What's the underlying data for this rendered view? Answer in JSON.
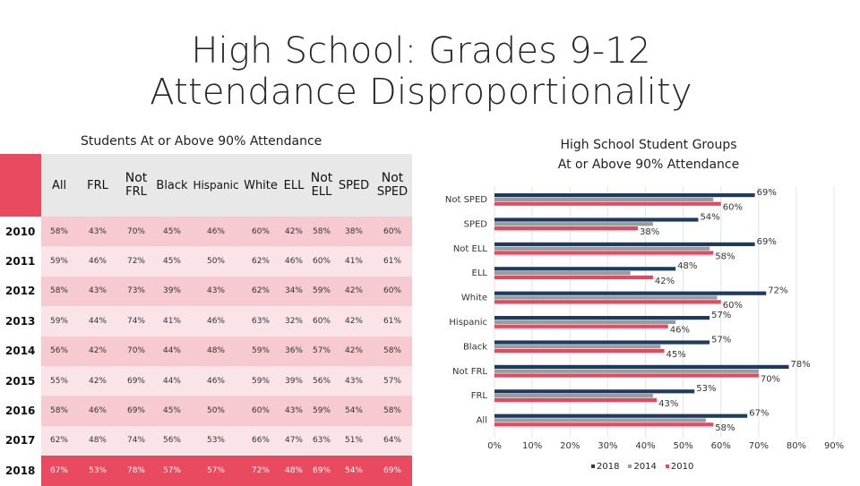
{
  "title_line1": "High School: Grades 9-12",
  "title_line2": "Attendance Disproportionality",
  "table": {
    "title": "Students At or Above 90% Attendance",
    "headers": [
      "All",
      "FRL",
      "Not FRL",
      "Black",
      "Hispanic",
      "White",
      "ELL",
      "Not ELL",
      "SPED",
      "Not SPED"
    ],
    "rows": [
      {
        "year": "2010",
        "values": [
          "58%",
          "43%",
          "70%",
          "45%",
          "46%",
          "60%",
          "42%",
          "58%",
          "38%",
          "60%"
        ]
      },
      {
        "year": "2011",
        "values": [
          "59%",
          "46%",
          "72%",
          "45%",
          "50%",
          "62%",
          "46%",
          "60%",
          "41%",
          "61%"
        ]
      },
      {
        "year": "2012",
        "values": [
          "58%",
          "43%",
          "73%",
          "39%",
          "43%",
          "62%",
          "34%",
          "59%",
          "42%",
          "60%"
        ]
      },
      {
        "year": "2013",
        "values": [
          "59%",
          "44%",
          "74%",
          "41%",
          "46%",
          "63%",
          "32%",
          "60%",
          "42%",
          "61%"
        ]
      },
      {
        "year": "2014",
        "values": [
          "56%",
          "42%",
          "70%",
          "44%",
          "48%",
          "59%",
          "36%",
          "57%",
          "42%",
          "58%"
        ]
      },
      {
        "year": "2015",
        "values": [
          "55%",
          "42%",
          "69%",
          "44%",
          "46%",
          "59%",
          "39%",
          "56%",
          "43%",
          "57%"
        ]
      },
      {
        "year": "2016",
        "values": [
          "58%",
          "46%",
          "69%",
          "45%",
          "50%",
          "60%",
          "43%",
          "59%",
          "54%",
          "58%"
        ]
      },
      {
        "year": "2017",
        "values": [
          "62%",
          "48%",
          "74%",
          "56%",
          "53%",
          "66%",
          "47%",
          "63%",
          "51%",
          "64%"
        ]
      },
      {
        "year": "2018",
        "values": [
          "67%",
          "53%",
          "78%",
          "57%",
          "57%",
          "72%",
          "48%",
          "69%",
          "54%",
          "69%"
        ]
      }
    ]
  },
  "chart_title_line1": "High School Student Groups",
  "chart_title_line2": "At or Above 90% Attendance",
  "chart_data": {
    "type": "bar",
    "orientation": "horizontal",
    "categories": [
      "Not SPED",
      "SPED",
      "Not ELL",
      "ELL",
      "White",
      "Hispanic",
      "Black",
      "Not FRL",
      "FRL",
      "All"
    ],
    "series": [
      {
        "name": "2018",
        "color": "#1f3a5f",
        "values": [
          69,
          54,
          69,
          48,
          72,
          57,
          57,
          78,
          53,
          67
        ]
      },
      {
        "name": "2014",
        "color": "#9b9b9b",
        "values": [
          58,
          42,
          57,
          36,
          59,
          48,
          44,
          70,
          42,
          56
        ]
      },
      {
        "name": "2010",
        "color": "#e8485e",
        "values": [
          60,
          38,
          58,
          42,
          60,
          46,
          45,
          70,
          43,
          58
        ]
      }
    ],
    "data_labels": [
      {
        "category": "Not SPED",
        "series": "2018",
        "text": "69%"
      },
      {
        "category": "Not SPED",
        "series": "2010",
        "text": "60%"
      },
      {
        "category": "SPED",
        "series": "2018",
        "text": "54%"
      },
      {
        "category": "SPED",
        "series": "2010",
        "text": "38%"
      },
      {
        "category": "Not ELL",
        "series": "2018",
        "text": "69%"
      },
      {
        "category": "Not ELL",
        "series": "2010",
        "text": "58%"
      },
      {
        "category": "ELL",
        "series": "2018",
        "text": "48%"
      },
      {
        "category": "ELL",
        "series": "2010",
        "text": "42%"
      },
      {
        "category": "White",
        "series": "2018",
        "text": "72%"
      },
      {
        "category": "White",
        "series": "2010",
        "text": "60%"
      },
      {
        "category": "Hispanic",
        "series": "2018",
        "text": "57%"
      },
      {
        "category": "Hispanic",
        "series": "2010",
        "text": "46%"
      },
      {
        "category": "Black",
        "series": "2018",
        "text": "57%"
      },
      {
        "category": "Black",
        "series": "2010",
        "text": "45%"
      },
      {
        "category": "Not FRL",
        "series": "2018",
        "text": "78%"
      },
      {
        "category": "Not FRL",
        "series": "2010",
        "text": "70%"
      },
      {
        "category": "FRL",
        "series": "2018",
        "text": "53%"
      },
      {
        "category": "FRL",
        "series": "2010",
        "text": "43%"
      },
      {
        "category": "All",
        "series": "2018",
        "text": "67%"
      },
      {
        "category": "All",
        "series": "2010",
        "text": "58%"
      }
    ],
    "xticks": [
      "0%",
      "10%",
      "20%",
      "30%",
      "40%",
      "50%",
      "60%",
      "70%",
      "80%",
      "90%"
    ],
    "xlim": [
      0,
      90
    ],
    "grid": true,
    "legend": "bottom"
  }
}
